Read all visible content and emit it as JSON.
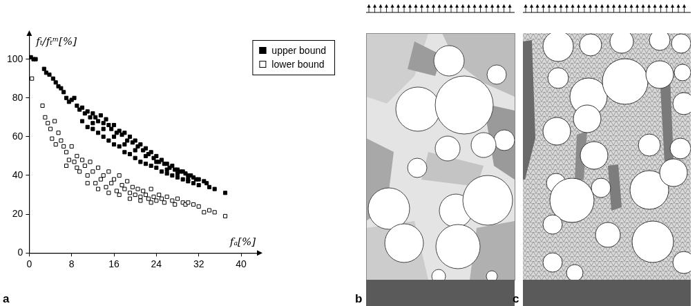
{
  "chart_data": {
    "type": "scatter",
    "x_label": "fₐ[%]",
    "y_label": "fₜ/fₜᵐ[%]",
    "xlim": [
      0,
      43
    ],
    "ylim": [
      0,
      112
    ],
    "xticks": [
      0,
      8,
      16,
      24,
      32,
      40
    ],
    "yticks": [
      0,
      20,
      40,
      60,
      80,
      100
    ],
    "grid": false,
    "legend": "upper right",
    "series": [
      {
        "name": "upper bound",
        "color": "#000000",
        "marker": "square",
        "x": [
          0.3,
          0.8,
          1.2,
          2.8,
          3.2,
          3.8,
          4.5,
          5,
          5.5,
          6,
          6.5,
          7,
          7.5,
          8,
          8.5,
          9,
          9.5,
          10,
          10.5,
          11,
          11.5,
          12,
          12.5,
          13,
          13.5,
          14,
          14.5,
          15,
          15.5,
          16,
          16.5,
          17,
          17.5,
          18,
          18.5,
          19,
          19.5,
          20,
          20.5,
          21,
          21.5,
          22,
          22.5,
          23,
          23.5,
          24,
          24.5,
          25,
          25.5,
          26,
          26.5,
          27,
          27.5,
          28,
          28.5,
          29,
          29.5,
          30,
          30.5,
          31,
          31.5,
          32,
          33,
          33.5,
          34,
          35,
          37,
          10,
          11,
          12,
          13,
          14,
          15,
          16,
          17,
          18,
          19,
          20,
          21,
          22,
          23,
          24,
          25,
          26,
          27,
          28,
          29,
          30,
          31,
          32,
          12,
          14,
          16,
          18,
          20,
          22,
          24,
          26,
          28,
          30
        ],
        "values": [
          101,
          100,
          100,
          95,
          93,
          92,
          90,
          88,
          86,
          85,
          83,
          80,
          78,
          79,
          80,
          76,
          74,
          75,
          72,
          73,
          70,
          72,
          70,
          68,
          71,
          67,
          69,
          66,
          64,
          66,
          62,
          63,
          61,
          62,
          58,
          60,
          57,
          58,
          55,
          56,
          53,
          54,
          51,
          52,
          49,
          50,
          47,
          48,
          46,
          46,
          44,
          45,
          43,
          43,
          42,
          42,
          41,
          40,
          40,
          39,
          38,
          38,
          37,
          36,
          34,
          33,
          31,
          68,
          65,
          64,
          62,
          60,
          58,
          56,
          55,
          52,
          51,
          49,
          47,
          46,
          45,
          44,
          42,
          41,
          40,
          39,
          38,
          37,
          36,
          35,
          67,
          64,
          60,
          56,
          53,
          50,
          47,
          43,
          41,
          38
        ]
      },
      {
        "name": "lower bound",
        "color": "#000000",
        "marker": "square_open",
        "x": [
          0.5,
          2.5,
          3,
          3.5,
          4,
          4.3,
          4.8,
          5.5,
          6,
          6.5,
          7,
          7.5,
          8,
          8.5,
          9,
          9.5,
          10,
          10.5,
          11,
          11.5,
          12,
          12.5,
          13,
          13.5,
          14,
          14.5,
          15,
          15.5,
          16,
          16.5,
          17,
          17.5,
          18,
          18.5,
          19,
          19.5,
          20,
          20.5,
          21,
          21.5,
          22,
          22.5,
          23,
          23.5,
          24,
          24.5,
          25,
          25.5,
          26,
          27,
          27.5,
          28,
          29,
          29.5,
          30,
          31,
          32,
          33,
          34,
          35,
          37,
          11,
          13,
          15,
          17,
          19,
          21,
          23,
          9,
          7,
          5
        ],
        "values": [
          90,
          76,
          70,
          67,
          64,
          59,
          68,
          62,
          58,
          55,
          52,
          48,
          55,
          47,
          50,
          42,
          48,
          45,
          40,
          47,
          42,
          36,
          44,
          38,
          40,
          34,
          42,
          36,
          38,
          32,
          40,
          35,
          33,
          37,
          31,
          34,
          30,
          33,
          29,
          32,
          30,
          28,
          33,
          29,
          27,
          30,
          28,
          26,
          29,
          27,
          25,
          28,
          26,
          25,
          26,
          25,
          24,
          21,
          22,
          21,
          19,
          36,
          33,
          31,
          30,
          28,
          27,
          26,
          44,
          45,
          56
        ]
      }
    ]
  },
  "panels": [
    {
      "label": "a"
    },
    {
      "label": "b"
    },
    {
      "label": "c"
    }
  ]
}
